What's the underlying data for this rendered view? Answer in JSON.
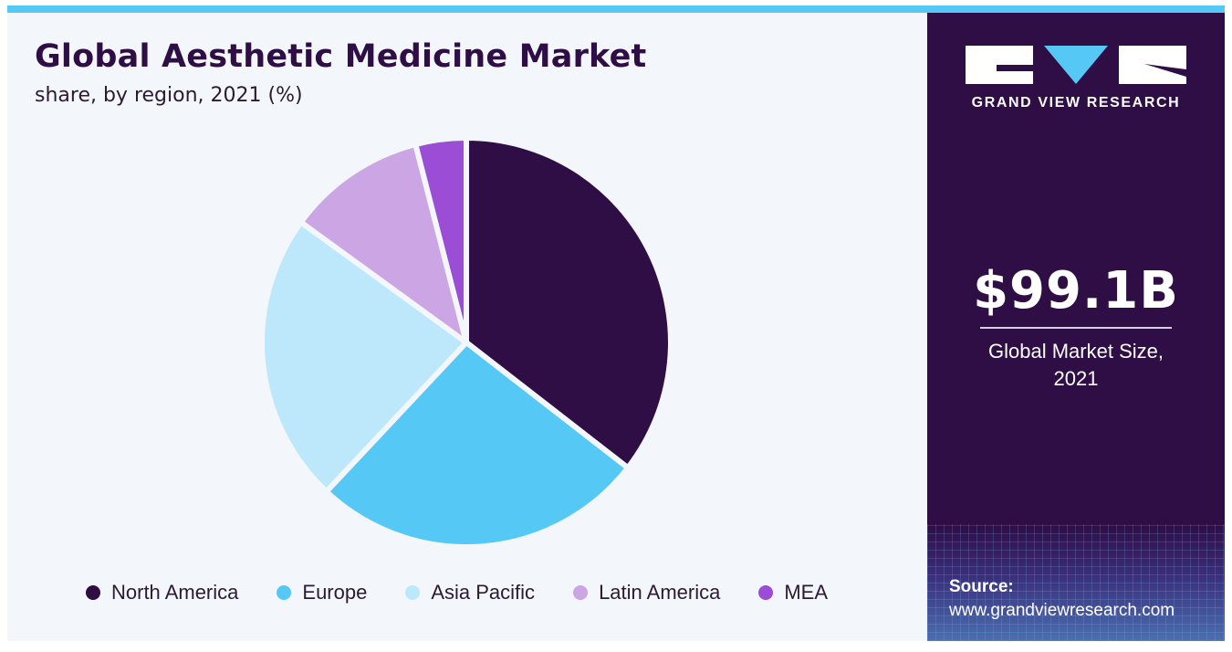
{
  "header": {
    "title": "Global Aesthetic Medicine Market",
    "subtitle": "share, by region, 2021 (%)"
  },
  "chart_data": {
    "type": "pie",
    "title": "Global Aesthetic Medicine Market",
    "subtitle": "share, by region, 2021 (%)",
    "legend_position": "bottom",
    "slices": [
      {
        "name": "North America",
        "value": 35.5,
        "color": "#2f0d45"
      },
      {
        "name": "Europe",
        "value": 26.5,
        "color": "#56c8f5"
      },
      {
        "name": "Asia Pacific",
        "value": 23.0,
        "color": "#bde8fb"
      },
      {
        "name": "Latin America",
        "value": 11.0,
        "color": "#cca5e4"
      },
      {
        "name": "MEA",
        "value": 4.0,
        "color": "#9b4dd6"
      }
    ]
  },
  "sidebar": {
    "brand": "GRAND VIEW RESEARCH",
    "market_size": "$99.1B",
    "market_label_line1": "Global Market Size,",
    "market_label_line2": "2021",
    "source_label": "Source:",
    "source_url": "www.grandviewresearch.com"
  },
  "colors": {
    "accent": "#56c8f5",
    "brand": "#2f0d45",
    "background": "#f3f7fc"
  }
}
